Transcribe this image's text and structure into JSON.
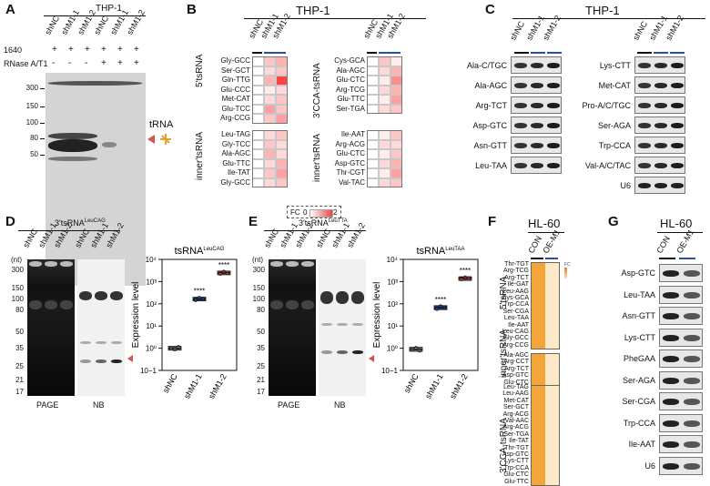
{
  "panels": {
    "A": {
      "label": "A",
      "cell_line": "THP-1",
      "lanes": [
        "shNC",
        "shM1-1",
        "shM1-2",
        "shNC",
        "shM1-1",
        "shM1-2"
      ],
      "row1_label": "1640",
      "row1_marks": [
        "+",
        "+",
        "+",
        "+",
        "+",
        "+"
      ],
      "row2_label": "RNase A/T1",
      "row2_marks": [
        "-",
        "-",
        "-",
        "+",
        "+",
        "+"
      ],
      "markers": [
        "300",
        "150",
        "100",
        "80",
        "50"
      ],
      "trna_label": "tRNA"
    },
    "B": {
      "label": "B",
      "cell_line": "THP-1",
      "columns": [
        "shNC",
        "shM1-1",
        "shM1-2"
      ],
      "group_5": "5'tsRNA",
      "group_inner": "inner'tsRNA",
      "group_3": "3'CCA-tsRNA",
      "group_inner2": "inner'tsRNA",
      "rows_5": [
        "Gly-GCC",
        "Ser-GCT",
        "Gln-TTG",
        "Glu-CCC",
        "Met-CAT",
        "Glu-TCC",
        "Arg-CCG"
      ],
      "rows_inner_left": [
        "Leu-TAG",
        "Gly-TCC",
        "Ala-AGC",
        "Glu-TTC",
        "Ile-TAT",
        "Gly-GCC"
      ],
      "rows_3": [
        "Cys-GCA",
        "Ala-AGC",
        "Glu-CTC",
        "Arg-TCG",
        "Glu-TTC",
        "Ser-TGA"
      ],
      "rows_inner_right": [
        "Ile-AAT",
        "Arg-ACG",
        "Glu-CTC",
        "Asp-GTC",
        "Thr-CGT",
        "Val-TAC"
      ],
      "scale_label": "FC",
      "scale_min": "0",
      "scale_max": "2"
    },
    "C": {
      "label": "C",
      "cell_line": "THP-1",
      "columns": [
        "shNC",
        "shM1-1",
        "shM1-2"
      ],
      "left_blots": [
        "Ala-C/TGC",
        "Ala-AGC",
        "Arg-TCT",
        "Asp-GTC",
        "Asn-GTT",
        "Leu-TAA"
      ],
      "right_blots": [
        "Lys-CTT",
        "Met-CAT",
        "Pro-A/C/TGC",
        "Ser-AGA",
        "Trp-CCA",
        "Val-A/C/TAC",
        "U6"
      ]
    },
    "D": {
      "label": "D",
      "title_main": "3'tsRNA",
      "title_sup": "LeuCAG",
      "lanes": [
        "shNC",
        "shM1-1",
        "shM1-2",
        "shNC",
        "shM1-1",
        "shM1-2"
      ],
      "unit": "(nt)",
      "markers": [
        "300",
        "150",
        "100",
        "80",
        "50",
        "35",
        "25",
        "21",
        "17"
      ],
      "page_label": "PAGE",
      "nb_label": "NB"
    },
    "E": {
      "label": "E",
      "title_main": "3'tsRNA",
      "title_sup": "LeuTTA",
      "lanes": [
        "shNC",
        "shM1-1",
        "shM1-2",
        "shNC",
        "shM1-1",
        "shM1-2"
      ],
      "unit": "(nt)",
      "markers": [
        "300",
        "150",
        "100",
        "80",
        "50",
        "35",
        "25",
        "21",
        "17"
      ],
      "page_label": "PAGE",
      "nb_label": "NB"
    },
    "F": {
      "label": "F",
      "cell_line": "HL-60",
      "columns": [
        "CON",
        "OE-M1"
      ],
      "group_5": "5'tsRNA",
      "group_inner": "inner'tsRNA",
      "group_3": "3'CCA-tsRNA",
      "rows_5": [
        "Thr-TGT",
        "Arg-TCG",
        "Arg-TCT",
        "Ile-GAT",
        "Leu-AAG",
        "Cys-GCA",
        "Trp-CCA",
        "Ser-CGA",
        "Leu-TAA",
        "Ile-AAT",
        "Leu-CAG",
        "Gly-GCC",
        "Arg-CCG"
      ],
      "rows_inner": [
        "Ala-AGC",
        "Arg-CCT",
        "Arg-TCT",
        "Asp-GTC",
        "Glu-CTC"
      ],
      "rows_3": [
        "Leu-TAG",
        "Leu-AAG",
        "Met-CAT",
        "Ser-GCT",
        "Arg-ACG",
        "Val-AAC",
        "Arg-ACG",
        "Ser-TGA",
        "Ile-TAT",
        "Thr-TGT",
        "Asp-GTC",
        "Lys-CTT",
        "Trp-CCA",
        "Glu-CTC",
        "Glu-TTC"
      ],
      "scale_label": "FC"
    },
    "G": {
      "label": "G",
      "cell_line": "HL-60",
      "columns": [
        "CON",
        "OE-M1"
      ],
      "blots": [
        "Asp-GTC",
        "Leu-TAA",
        "Asn-GTT",
        "Lys-CTT",
        "PheGAA",
        "Ser-AGA",
        "Ser-CGA",
        "Trp-CCA",
        "Ile-AAT",
        "U6"
      ]
    }
  },
  "colors": {
    "red": "#d9534f",
    "blue": "#2d4fa3",
    "black": "#111111"
  },
  "chart_data": [
    {
      "type": "scatter",
      "title": "tsRNA",
      "title_sup": "LeuCAG",
      "ylabel": "Expression level",
      "categories": [
        "shNC",
        "shM1-1",
        "shM1-2"
      ],
      "y_scale": "log",
      "ylim": [
        0.1,
        10000
      ],
      "y_ticks": [
        "10−1",
        "10⁰",
        "10¹",
        "10²",
        "10³",
        "10⁴"
      ],
      "significance": [
        "",
        "****",
        "****"
      ],
      "series": [
        {
          "name": "shNC",
          "values": [
            1.0,
            0.9,
            1.1
          ]
        },
        {
          "name": "shM1-1",
          "values": [
            150,
            180,
            165
          ]
        },
        {
          "name": "shM1-2",
          "values": [
            2300,
            2700,
            2500
          ]
        }
      ]
    },
    {
      "type": "scatter",
      "title": "tsRNA",
      "title_sup": "LeuTAA",
      "ylabel": "Expression level",
      "categories": [
        "shNC",
        "shM1-1",
        "shM1-2"
      ],
      "y_scale": "log",
      "ylim": [
        0.1,
        10000
      ],
      "y_ticks": [
        "10−1",
        "10⁰",
        "10¹",
        "10²",
        "10³",
        "10⁴"
      ],
      "significance": [
        "",
        "****",
        "****"
      ],
      "series": [
        {
          "name": "shNC",
          "values": [
            0.9,
            1.0,
            0.8
          ]
        },
        {
          "name": "shM1-1",
          "values": [
            60,
            75,
            68
          ]
        },
        {
          "name": "shM1-2",
          "values": [
            1300,
            1500,
            1400
          ]
        }
      ]
    }
  ]
}
